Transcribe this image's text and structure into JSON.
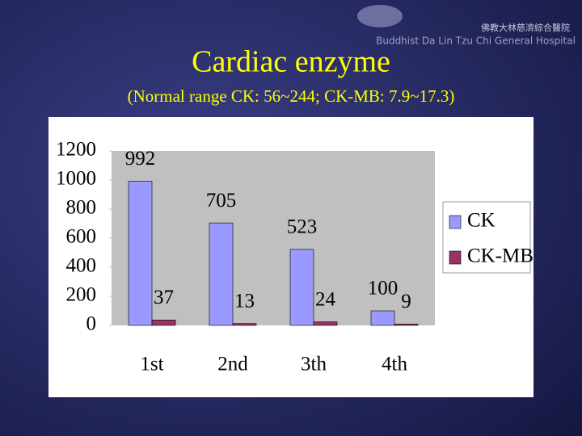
{
  "header": {
    "org_chinese": "佛教大林慈濟綜合醫院",
    "org_english": "Buddhist Da Lin Tzu Chi General Hospital"
  },
  "chart_data": {
    "type": "bar",
    "title": "Cardiac enzyme",
    "subtitle": "(Normal range  CK: 56~244; CK-MB: 7.9~17.3)",
    "categories": [
      "1st",
      "2nd",
      "3th",
      "4th"
    ],
    "series": [
      {
        "name": "CK",
        "color": "#9999ff",
        "values": [
          992,
          705,
          523,
          100
        ]
      },
      {
        "name": "CK-MB",
        "color": "#993366",
        "values": [
          37,
          13,
          24,
          9
        ]
      }
    ],
    "ylim": [
      0,
      1200
    ],
    "yticks": [
      0,
      200,
      400,
      600,
      800,
      1000,
      1200
    ],
    "grid": false,
    "legend": "right"
  }
}
